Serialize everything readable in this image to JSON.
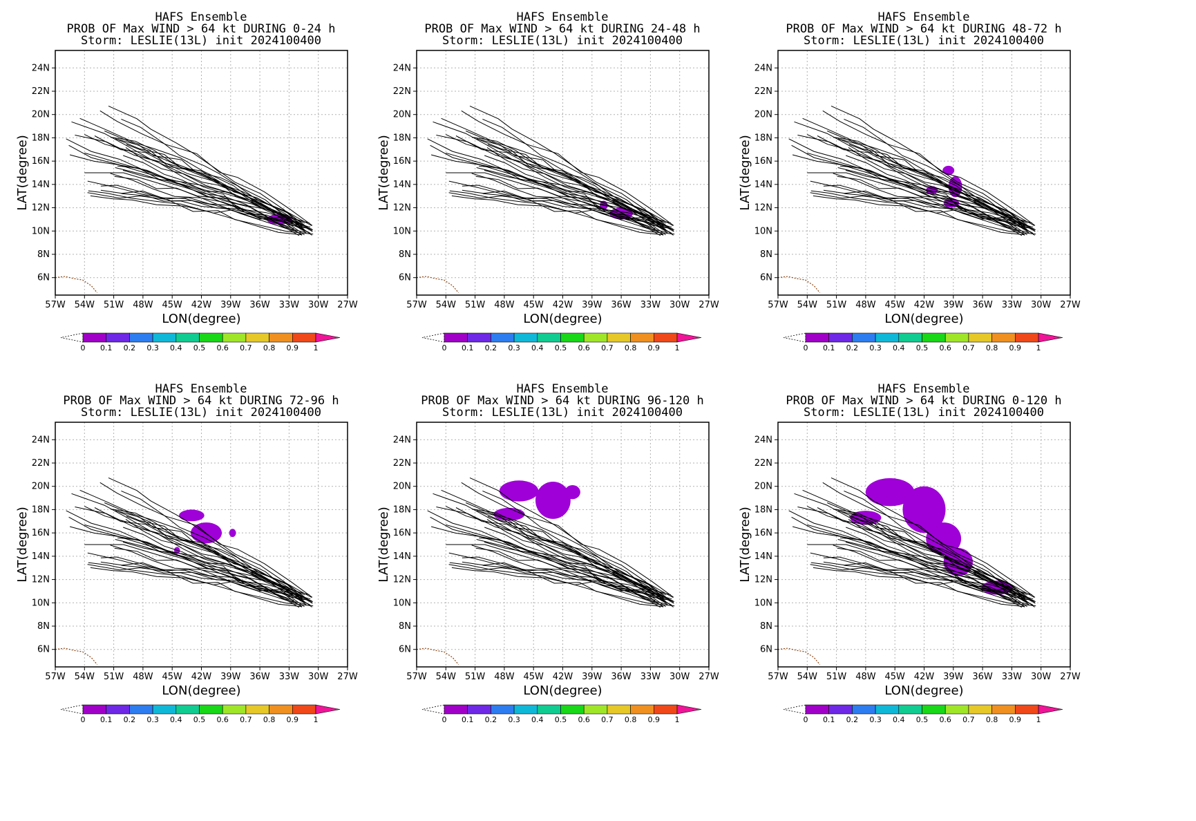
{
  "colors": {
    "probability_fill": "#9f00d8",
    "track_line": "#000000",
    "coastline": "#8b4513",
    "grid": "#b0b0b0",
    "colorbar": [
      "#a000c8",
      "#6e28e6",
      "#2d7df0",
      "#10b8d8",
      "#10cc90",
      "#18d818",
      "#a0e628",
      "#e6c828",
      "#f09020",
      "#f04818",
      "#f01498"
    ]
  },
  "common": {
    "title_line1": "HAFS Ensemble",
    "title_line3": "Storm: LESLIE(13L) init 2024100400",
    "xlabel": "LON(degree)",
    "ylabel": "LAT(degree)",
    "lon_ticks": [
      "57W",
      "54W",
      "51W",
      "48W",
      "45W",
      "42W",
      "39W",
      "36W",
      "33W",
      "30W",
      "27W"
    ],
    "lat_ticks": [
      "6N",
      "8N",
      "10N",
      "12N",
      "14N",
      "16N",
      "18N",
      "20N",
      "22N",
      "24N"
    ],
    "colorbar_labels": [
      "0",
      "0.1",
      "0.2",
      "0.3",
      "0.4",
      "0.5",
      "0.6",
      "0.7",
      "0.8",
      "0.9",
      "1"
    ]
  },
  "chart_data": [
    {
      "type": "heatmap",
      "title": "PROB OF Max WIND > 64 kt DURING  0-24 h",
      "xlim": [
        -57,
        -27
      ],
      "ylim": [
        4.5,
        25.5
      ],
      "regions": [
        {
          "lon": -34,
          "lat": 11,
          "rx": 1.3,
          "ry": 0.45
        }
      ]
    },
    {
      "type": "heatmap",
      "title": "PROB OF Max WIND > 64 kt DURING 24-48 h",
      "xlim": [
        -57,
        -27
      ],
      "ylim": [
        4.5,
        25.5
      ],
      "regions": [
        {
          "lon": -36,
          "lat": 11.5,
          "rx": 1.2,
          "ry": 0.5
        },
        {
          "lon": -37.8,
          "lat": 12.2,
          "rx": 0.4,
          "ry": 0.4
        }
      ]
    },
    {
      "type": "heatmap",
      "title": "PROB OF Max WIND > 64 kt DURING 48-72 h",
      "xlim": [
        -57,
        -27
      ],
      "ylim": [
        4.5,
        25.5
      ],
      "regions": [
        {
          "lon": -39.5,
          "lat": 15.2,
          "rx": 0.6,
          "ry": 0.4
        },
        {
          "lon": -38.8,
          "lat": 13.8,
          "rx": 0.7,
          "ry": 0.9
        },
        {
          "lon": -41.2,
          "lat": 13.5,
          "rx": 0.6,
          "ry": 0.35
        },
        {
          "lon": -39.2,
          "lat": 12.4,
          "rx": 0.8,
          "ry": 0.4
        }
      ]
    },
    {
      "type": "heatmap",
      "title": "PROB OF Max WIND > 64 kt DURING 72-96 h",
      "xlim": [
        -57,
        -27
      ],
      "ylim": [
        4.5,
        25.5
      ],
      "regions": [
        {
          "lon": -43,
          "lat": 17.5,
          "rx": 1.3,
          "ry": 0.5
        },
        {
          "lon": -41.5,
          "lat": 16,
          "rx": 1.6,
          "ry": 0.9
        },
        {
          "lon": -38.8,
          "lat": 16,
          "rx": 0.35,
          "ry": 0.35
        },
        {
          "lon": -44.5,
          "lat": 14.5,
          "rx": 0.3,
          "ry": 0.3
        }
      ]
    },
    {
      "type": "heatmap",
      "title": "PROB OF Max WIND > 64 kt DURING 96-120 h",
      "xlim": [
        -57,
        -27
      ],
      "ylim": [
        4.5,
        25.5
      ],
      "regions": [
        {
          "lon": -46.5,
          "lat": 19.6,
          "rx": 2.0,
          "ry": 0.9
        },
        {
          "lon": -43,
          "lat": 18.8,
          "rx": 1.8,
          "ry": 1.6
        },
        {
          "lon": -47.5,
          "lat": 17.6,
          "rx": 1.6,
          "ry": 0.55
        },
        {
          "lon": -41,
          "lat": 19.5,
          "rx": 0.8,
          "ry": 0.6
        }
      ]
    },
    {
      "type": "heatmap",
      "title": "PROB OF Max WIND > 64 kt DURING 0-120 h",
      "xlim": [
        -57,
        -27
      ],
      "ylim": [
        4.5,
        25.5
      ],
      "regions": [
        {
          "lon": -45.5,
          "lat": 19.5,
          "rx": 2.5,
          "ry": 1.2
        },
        {
          "lon": -42,
          "lat": 18,
          "rx": 2.2,
          "ry": 2.0
        },
        {
          "lon": -48,
          "lat": 17.3,
          "rx": 1.6,
          "ry": 0.6
        },
        {
          "lon": -40,
          "lat": 15.5,
          "rx": 1.8,
          "ry": 1.4
        },
        {
          "lon": -38.5,
          "lat": 13.5,
          "rx": 1.5,
          "ry": 1.2
        },
        {
          "lon": -34.5,
          "lat": 11.3,
          "rx": 1.6,
          "ry": 0.6
        }
      ]
    }
  ]
}
